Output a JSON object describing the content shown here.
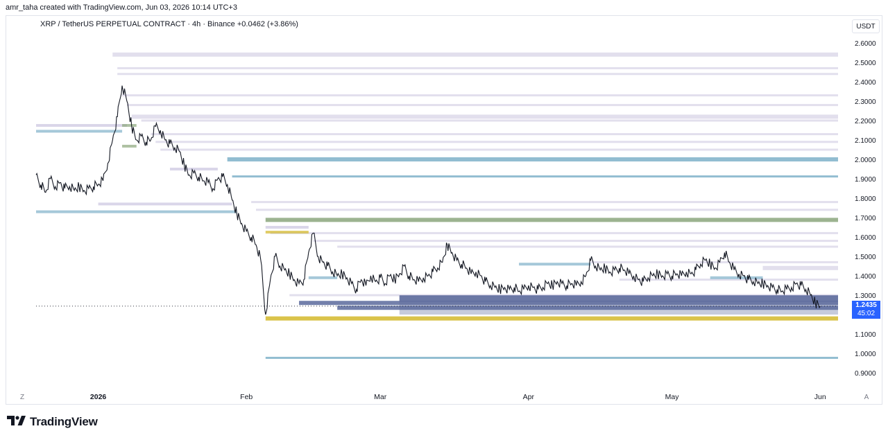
{
  "header": {
    "created_by": "amr_taha created with TradingView.com, Jun 03, 2026 10:14 UTC+3"
  },
  "legend": {
    "symbol": "XRP / TetherUS PERPETUAL CONTRACT · 4h · Binance",
    "change": "+0.0462 (+3.86%)"
  },
  "unit_button": "USDT",
  "corners": {
    "left": "Z",
    "right": "A"
  },
  "price_tag": {
    "price": "1.2435",
    "countdown": "45:02"
  },
  "brand": {
    "name": "TradingView"
  },
  "colors": {
    "price_line": "#131722",
    "axis_text": "#131722",
    "tag_bg": "#2962ff",
    "level_yellow": "#d4b82a",
    "level_green": "#8ba67c",
    "level_blue": "#7fb1c9",
    "level_lilac": "#cbc4df",
    "level_navy": "#5b6a9c"
  },
  "chart_data": {
    "type": "line",
    "ylim": [
      0.85,
      2.65
    ],
    "y_ticks": [
      "2.6000",
      "2.5000",
      "2.4000",
      "2.3000",
      "2.2000",
      "2.1000",
      "2.0000",
      "1.9000",
      "1.8000",
      "1.7000",
      "1.6000",
      "1.5000",
      "1.4000",
      "1.3000",
      "1.2000",
      "1.1000",
      "1.0000",
      "0.9000"
    ],
    "y_tick_values": [
      2.6,
      2.5,
      2.4,
      2.3,
      2.2,
      2.1,
      2.0,
      1.9,
      1.8,
      1.7,
      1.6,
      1.5,
      1.4,
      1.3,
      1.2,
      1.1,
      1.0,
      0.9
    ],
    "x_ticks": [
      {
        "label": "2026",
        "date": "2026-01-01"
      },
      {
        "label": "Feb",
        "date": "2026-02-01"
      },
      {
        "label": "Mar",
        "date": "2026-03-01"
      },
      {
        "label": "Apr",
        "date": "2026-04-01"
      },
      {
        "label": "May",
        "date": "2026-05-01"
      },
      {
        "label": "Jun",
        "date": "2026-06-01"
      }
    ],
    "xlim": [
      "2025-12-19",
      "2026-06-03"
    ],
    "series": [
      {
        "points": [
          [
            "2025-12-19",
            1.92
          ],
          [
            "2025-12-20",
            1.87
          ],
          [
            "2025-12-21",
            1.83
          ],
          [
            "2025-12-22",
            1.9
          ],
          [
            "2025-12-23",
            1.86
          ],
          [
            "2025-12-24",
            1.88
          ],
          [
            "2025-12-25",
            1.85
          ],
          [
            "2025-12-26",
            1.86
          ],
          [
            "2025-12-27",
            1.84
          ],
          [
            "2025-12-28",
            1.86
          ],
          [
            "2025-12-29",
            1.84
          ],
          [
            "2025-12-30",
            1.85
          ],
          [
            "2025-12-31",
            1.86
          ],
          [
            "2026-01-01",
            1.87
          ],
          [
            "2026-01-02",
            1.89
          ],
          [
            "2026-01-03",
            1.98
          ],
          [
            "2026-01-04",
            2.1
          ],
          [
            "2026-01-05",
            2.22
          ],
          [
            "2026-01-06",
            2.38
          ],
          [
            "2026-01-07",
            2.3
          ],
          [
            "2026-01-08",
            2.17
          ],
          [
            "2026-01-09",
            2.1
          ],
          [
            "2026-01-10",
            2.12
          ],
          [
            "2026-01-11",
            2.09
          ],
          [
            "2026-01-12",
            2.1
          ],
          [
            "2026-01-13",
            2.17
          ],
          [
            "2026-01-14",
            2.15
          ],
          [
            "2026-01-15",
            2.1
          ],
          [
            "2026-01-16",
            2.08
          ],
          [
            "2026-01-17",
            2.06
          ],
          [
            "2026-01-18",
            2.04
          ],
          [
            "2026-01-19",
            1.97
          ],
          [
            "2026-01-20",
            1.92
          ],
          [
            "2026-01-21",
            1.93
          ],
          [
            "2026-01-22",
            1.91
          ],
          [
            "2026-01-23",
            1.89
          ],
          [
            "2026-01-24",
            1.88
          ],
          [
            "2026-01-25",
            1.85
          ],
          [
            "2026-01-26",
            1.9
          ],
          [
            "2026-01-27",
            1.91
          ],
          [
            "2026-01-28",
            1.87
          ],
          [
            "2026-01-29",
            1.79
          ],
          [
            "2026-01-30",
            1.72
          ],
          [
            "2026-01-31",
            1.67
          ],
          [
            "2026-02-01",
            1.63
          ],
          [
            "2026-02-02",
            1.6
          ],
          [
            "2026-02-03",
            1.56
          ],
          [
            "2026-02-04",
            1.48
          ],
          [
            "2026-02-05",
            1.2
          ],
          [
            "2026-02-06",
            1.38
          ],
          [
            "2026-02-07",
            1.5
          ],
          [
            "2026-02-08",
            1.45
          ],
          [
            "2026-02-09",
            1.43
          ],
          [
            "2026-02-10",
            1.41
          ],
          [
            "2026-02-11",
            1.38
          ],
          [
            "2026-02-12",
            1.36
          ],
          [
            "2026-02-13",
            1.38
          ],
          [
            "2026-02-14",
            1.52
          ],
          [
            "2026-02-15",
            1.62
          ],
          [
            "2026-02-16",
            1.5
          ],
          [
            "2026-02-17",
            1.47
          ],
          [
            "2026-02-18",
            1.45
          ],
          [
            "2026-02-19",
            1.42
          ],
          [
            "2026-02-20",
            1.4
          ],
          [
            "2026-02-21",
            1.41
          ],
          [
            "2026-02-22",
            1.39
          ],
          [
            "2026-02-23",
            1.36
          ],
          [
            "2026-02-24",
            1.33
          ],
          [
            "2026-02-25",
            1.38
          ],
          [
            "2026-02-26",
            1.35
          ],
          [
            "2026-02-27",
            1.4
          ],
          [
            "2026-02-28",
            1.37
          ],
          [
            "2026-03-01",
            1.39
          ],
          [
            "2026-03-02",
            1.36
          ],
          [
            "2026-03-03",
            1.4
          ],
          [
            "2026-03-04",
            1.38
          ],
          [
            "2026-03-05",
            1.41
          ],
          [
            "2026-03-06",
            1.45
          ],
          [
            "2026-03-07",
            1.4
          ],
          [
            "2026-03-08",
            1.38
          ],
          [
            "2026-03-09",
            1.37
          ],
          [
            "2026-03-10",
            1.39
          ],
          [
            "2026-03-11",
            1.4
          ],
          [
            "2026-03-12",
            1.42
          ],
          [
            "2026-03-13",
            1.44
          ],
          [
            "2026-03-14",
            1.47
          ],
          [
            "2026-03-15",
            1.56
          ],
          [
            "2026-03-16",
            1.52
          ],
          [
            "2026-03-17",
            1.48
          ],
          [
            "2026-03-18",
            1.46
          ],
          [
            "2026-03-19",
            1.44
          ],
          [
            "2026-03-20",
            1.41
          ],
          [
            "2026-03-21",
            1.42
          ],
          [
            "2026-03-22",
            1.4
          ],
          [
            "2026-03-23",
            1.37
          ],
          [
            "2026-03-24",
            1.35
          ],
          [
            "2026-03-25",
            1.34
          ],
          [
            "2026-03-26",
            1.33
          ],
          [
            "2026-03-27",
            1.34
          ],
          [
            "2026-03-28",
            1.33
          ],
          [
            "2026-03-29",
            1.34
          ],
          [
            "2026-03-30",
            1.32
          ],
          [
            "2026-03-31",
            1.33
          ],
          [
            "2026-04-01",
            1.35
          ],
          [
            "2026-04-02",
            1.34
          ],
          [
            "2026-04-03",
            1.33
          ],
          [
            "2026-04-04",
            1.34
          ],
          [
            "2026-04-05",
            1.36
          ],
          [
            "2026-04-06",
            1.35
          ],
          [
            "2026-04-07",
            1.37
          ],
          [
            "2026-04-08",
            1.36
          ],
          [
            "2026-04-09",
            1.35
          ],
          [
            "2026-04-10",
            1.36
          ],
          [
            "2026-04-11",
            1.35
          ],
          [
            "2026-04-12",
            1.37
          ],
          [
            "2026-04-13",
            1.4
          ],
          [
            "2026-04-14",
            1.48
          ],
          [
            "2026-04-15",
            1.45
          ],
          [
            "2026-04-16",
            1.43
          ],
          [
            "2026-04-17",
            1.44
          ],
          [
            "2026-04-18",
            1.42
          ],
          [
            "2026-04-19",
            1.43
          ],
          [
            "2026-04-20",
            1.44
          ],
          [
            "2026-04-21",
            1.43
          ],
          [
            "2026-04-22",
            1.41
          ],
          [
            "2026-04-23",
            1.4
          ],
          [
            "2026-04-24",
            1.38
          ],
          [
            "2026-04-25",
            1.37
          ],
          [
            "2026-04-26",
            1.39
          ],
          [
            "2026-04-27",
            1.4
          ],
          [
            "2026-04-28",
            1.41
          ],
          [
            "2026-04-29",
            1.4
          ],
          [
            "2026-04-30",
            1.41
          ],
          [
            "2026-05-01",
            1.4
          ],
          [
            "2026-05-02",
            1.41
          ],
          [
            "2026-05-03",
            1.4
          ],
          [
            "2026-05-04",
            1.42
          ],
          [
            "2026-05-05",
            1.41
          ],
          [
            "2026-05-06",
            1.43
          ],
          [
            "2026-05-07",
            1.46
          ],
          [
            "2026-05-08",
            1.48
          ],
          [
            "2026-05-09",
            1.46
          ],
          [
            "2026-05-10",
            1.44
          ],
          [
            "2026-05-11",
            1.47
          ],
          [
            "2026-05-12",
            1.52
          ],
          [
            "2026-05-13",
            1.47
          ],
          [
            "2026-05-14",
            1.43
          ],
          [
            "2026-05-15",
            1.41
          ],
          [
            "2026-05-16",
            1.4
          ],
          [
            "2026-05-17",
            1.38
          ],
          [
            "2026-05-18",
            1.37
          ],
          [
            "2026-05-19",
            1.36
          ],
          [
            "2026-05-20",
            1.36
          ],
          [
            "2026-05-21",
            1.35
          ],
          [
            "2026-05-22",
            1.34
          ],
          [
            "2026-05-23",
            1.33
          ],
          [
            "2026-05-24",
            1.32
          ],
          [
            "2026-05-25",
            1.33
          ],
          [
            "2026-05-26",
            1.34
          ],
          [
            "2026-05-27",
            1.36
          ],
          [
            "2026-05-28",
            1.35
          ],
          [
            "2026-05-29",
            1.33
          ],
          [
            "2026-05-30",
            1.3
          ],
          [
            "2026-05-31",
            1.26
          ],
          [
            "2026-06-01",
            1.2435
          ]
        ]
      }
    ],
    "current_price": 1.2435,
    "liquidity_levels": [
      {
        "price": 2.54,
        "from": "2026-01-04",
        "color": "lilac",
        "weight": 2
      },
      {
        "price": 2.47,
        "from": "2026-01-05",
        "color": "lilac",
        "weight": 1
      },
      {
        "price": 2.44,
        "from": "2026-01-05",
        "color": "lilac",
        "weight": 1
      },
      {
        "price": 2.33,
        "from": "2026-01-06",
        "color": "lilac",
        "weight": 1
      },
      {
        "price": 2.28,
        "from": "2026-01-07",
        "color": "lilac",
        "weight": 1
      },
      {
        "price": 2.22,
        "from": "2026-01-08",
        "color": "lilac",
        "weight": 2
      },
      {
        "price": 2.2,
        "from": "2026-01-10",
        "color": "lilac",
        "weight": 1
      },
      {
        "price": 2.13,
        "from": "2026-01-12",
        "color": "lilac",
        "weight": 1
      },
      {
        "price": 2.09,
        "from": "2026-01-13",
        "color": "lilac",
        "weight": 1
      },
      {
        "price": 2.05,
        "from": "2026-01-14",
        "color": "lilac",
        "weight": 1
      },
      {
        "price": 2.0,
        "from": "2026-01-28",
        "color": "blue",
        "weight": 2
      },
      {
        "price": 1.912,
        "from": "2026-01-29",
        "color": "blue",
        "weight": 1
      },
      {
        "price": 1.78,
        "from": "2026-02-02",
        "color": "lilac",
        "weight": 1
      },
      {
        "price": 1.74,
        "from": "2026-02-03",
        "color": "lilac",
        "weight": 1
      },
      {
        "price": 1.688,
        "from": "2026-02-05",
        "color": "green",
        "weight": 2
      },
      {
        "price": 1.62,
        "from": "2026-02-06",
        "color": "lilac",
        "weight": 1
      },
      {
        "price": 1.58,
        "from": "2026-02-15",
        "color": "lilac",
        "weight": 1
      },
      {
        "price": 1.55,
        "from": "2026-02-20",
        "color": "lilac",
        "weight": 1
      },
      {
        "price": 1.47,
        "from": "2026-04-14",
        "color": "lilac",
        "weight": 1
      },
      {
        "price": 1.44,
        "from": "2026-05-20",
        "color": "lilac",
        "weight": 2
      },
      {
        "price": 1.38,
        "from": "2026-04-20",
        "color": "lilac",
        "weight": 1
      },
      {
        "price": 1.3,
        "from": "2026-02-10",
        "color": "lilac",
        "weight": 1
      },
      {
        "price": 1.283,
        "from": "2026-03-05",
        "color": "navy",
        "weight": 3
      },
      {
        "price": 1.26,
        "from": "2026-02-12",
        "color": "navy",
        "weight": 2
      },
      {
        "price": 1.235,
        "from": "2026-02-20",
        "color": "navy",
        "weight": 2
      },
      {
        "price": 1.18,
        "from": "2026-02-05",
        "color": "yellow",
        "weight": 2
      },
      {
        "price": 0.977,
        "from": "2026-02-05",
        "color": "blue",
        "weight": 1
      }
    ],
    "historic_levels": [
      {
        "price": 2.175,
        "from": "2025-12-19",
        "to": "2026-01-07",
        "color": "lilac"
      },
      {
        "price": 2.145,
        "from": "2025-12-19",
        "to": "2026-01-06",
        "color": "blue"
      },
      {
        "price": 2.175,
        "from": "2026-01-06",
        "to": "2026-01-09",
        "color": "green"
      },
      {
        "price": 2.068,
        "from": "2026-01-06",
        "to": "2026-01-09",
        "color": "green"
      },
      {
        "price": 1.73,
        "from": "2025-12-19",
        "to": "2026-01-30",
        "color": "blue"
      },
      {
        "price": 1.77,
        "from": "2026-01-01",
        "to": "2026-01-29",
        "color": "lilac"
      },
      {
        "price": 1.95,
        "from": "2026-01-16",
        "to": "2026-01-26",
        "color": "lilac"
      },
      {
        "price": 1.625,
        "from": "2026-02-05",
        "to": "2026-02-14",
        "color": "yellow"
      },
      {
        "price": 1.65,
        "from": "2026-02-05",
        "to": "2026-02-14",
        "color": "lilac"
      },
      {
        "price": 1.39,
        "from": "2026-02-14",
        "to": "2026-02-20",
        "color": "blue"
      },
      {
        "price": 1.46,
        "from": "2026-03-30",
        "to": "2026-04-14",
        "color": "blue"
      },
      {
        "price": 1.39,
        "from": "2026-05-09",
        "to": "2026-05-20",
        "color": "blue"
      }
    ]
  }
}
